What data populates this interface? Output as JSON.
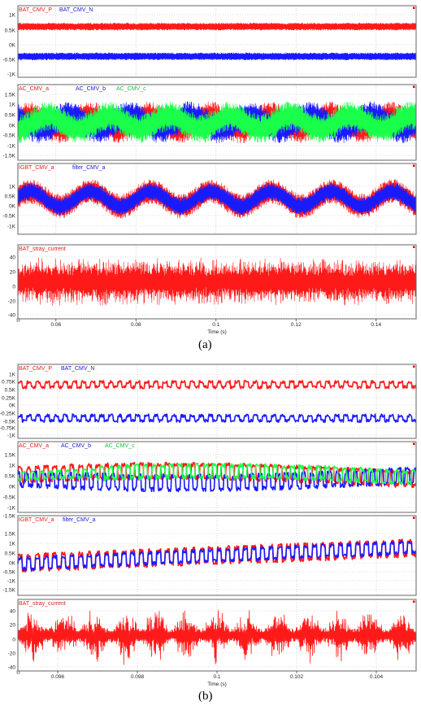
{
  "colors": {
    "red": "#ff1a1a",
    "blue": "#1a1aff",
    "green": "#1aff4a",
    "legend_red": "#e02020",
    "legend_blue": "#2020d0",
    "legend_green": "#20c040"
  },
  "figures": [
    {
      "caption": "(a)",
      "time_label": "Time (s)",
      "x_range": [
        0.0505,
        0.15
      ],
      "x_ticks": [
        "0.06",
        "0.08",
        "0.1",
        "0.12",
        "0.14"
      ],
      "x_tick_values": [
        0.06,
        0.08,
        0.1,
        0.12,
        0.14
      ],
      "panels": [
        {
          "legend": [
            "BAT_CMV_P",
            "BAT_CMV_N"
          ],
          "ticks": [
            "1K",
            "0.5K",
            "0K",
            "-0.5K",
            "-1K"
          ]
        },
        {
          "legend": [
            "AC_CMV_a",
            "AC_CMV_b",
            "AC_CMV_c"
          ],
          "ticks": [
            "1.5K",
            "1K",
            "0.5K",
            "0K",
            "-0.5K",
            "-1K",
            "-1.5K"
          ]
        },
        {
          "legend": [
            "IGBT_CMV_a",
            "filter_CMV_a"
          ],
          "ticks": [
            "1K",
            "0.5K",
            "0K",
            "-0.5K",
            "-1K"
          ]
        },
        {
          "legend": [
            "BAT_stray_current"
          ],
          "ticks": [
            "40",
            "20",
            "0",
            "-20",
            "-40"
          ]
        }
      ]
    },
    {
      "caption": "(b)",
      "time_label": "Time (s)",
      "x_range": [
        0.095,
        0.105
      ],
      "x_ticks": [
        "0.096",
        "0.098",
        "0.1",
        "0.102",
        "0.104"
      ],
      "x_tick_values": [
        0.096,
        0.098,
        0.1,
        0.102,
        0.104
      ],
      "panels": [
        {
          "legend": [
            "BAT_CMV_P",
            "BAT_CMV_N"
          ],
          "ticks": [
            "1K",
            "0.75K",
            "0.5K",
            "0.25K",
            "0K",
            "-0.25K",
            "-0.5K",
            "-0.75K",
            "-1K"
          ]
        },
        {
          "legend": [
            "AC_CMV_a",
            "AC_CMV_b",
            "AC_CMV_c"
          ],
          "ticks": [
            "1.5K",
            "1K",
            "0.5K",
            "0K",
            "-0.5K",
            "-1K",
            "-1.5K"
          ]
        },
        {
          "legend": [
            "IGBT_CMV_a",
            "filter_CMV_a"
          ],
          "ticks": [
            "1.5K",
            "1K",
            "0.5K",
            "0K",
            "-0.5K",
            "-1K",
            "-1.5K"
          ]
        },
        {
          "legend": [
            "BAT_stray_current"
          ],
          "ticks": [
            "40",
            "20",
            "0",
            "-20",
            "-40"
          ]
        }
      ]
    }
  ],
  "chart_data": [
    {
      "type": "line",
      "title": "",
      "xlabel": "Time (s)",
      "xlim": [
        0.0505,
        0.15
      ],
      "subplots": [
        {
          "ylim": [
            -1200,
            1200
          ],
          "series": [
            {
              "name": "BAT_CMV_P",
              "mean": 500,
              "ripple": 120
            },
            {
              "name": "BAT_CMV_N",
              "mean": -500,
              "ripple": 120
            }
          ]
        },
        {
          "ylim": [
            -1800,
            1800
          ],
          "series": [
            {
              "name": "AC_CMV_a",
              "amplitude": 700,
              "envelope": 300
            },
            {
              "name": "AC_CMV_b",
              "amplitude": 700,
              "envelope": 300
            },
            {
              "name": "AC_CMV_c",
              "amplitude": 700,
              "envelope": 300
            }
          ]
        },
        {
          "ylim": [
            -1200,
            1200
          ],
          "series": [
            {
              "name": "IGBT_CMV_a",
              "mean": 0,
              "swing": 400
            },
            {
              "name": "filter_CMV_a",
              "mean": 0,
              "swing": 400
            }
          ]
        },
        {
          "ylim": [
            -45,
            45
          ],
          "series": [
            {
              "name": "BAT_stray_current",
              "peak": 40
            }
          ]
        }
      ]
    },
    {
      "type": "line",
      "title": "",
      "xlabel": "Time (s)",
      "xlim": [
        0.095,
        0.105
      ],
      "subplots": [
        {
          "ylim": [
            -1100,
            1100
          ],
          "series": [
            {
              "name": "BAT_CMV_P",
              "mean": 500,
              "ripple": 150
            },
            {
              "name": "BAT_CMV_N",
              "mean": -500,
              "ripple": 150
            }
          ]
        },
        {
          "ylim": [
            -1800,
            1800
          ],
          "series": [
            {
              "name": "AC_CMV_a",
              "amplitude": 450
            },
            {
              "name": "AC_CMV_b",
              "amplitude": 450
            },
            {
              "name": "AC_CMV_c",
              "amplitude": 400
            }
          ]
        },
        {
          "ylim": [
            -1800,
            1800
          ],
          "series": [
            {
              "name": "IGBT_CMV_a",
              "mean": 0,
              "swing": 500
            },
            {
              "name": "filter_CMV_a",
              "mean": 0,
              "swing": 500
            }
          ]
        },
        {
          "ylim": [
            -45,
            45
          ],
          "series": [
            {
              "name": "BAT_stray_current",
              "peak": 40
            }
          ]
        }
      ]
    }
  ]
}
